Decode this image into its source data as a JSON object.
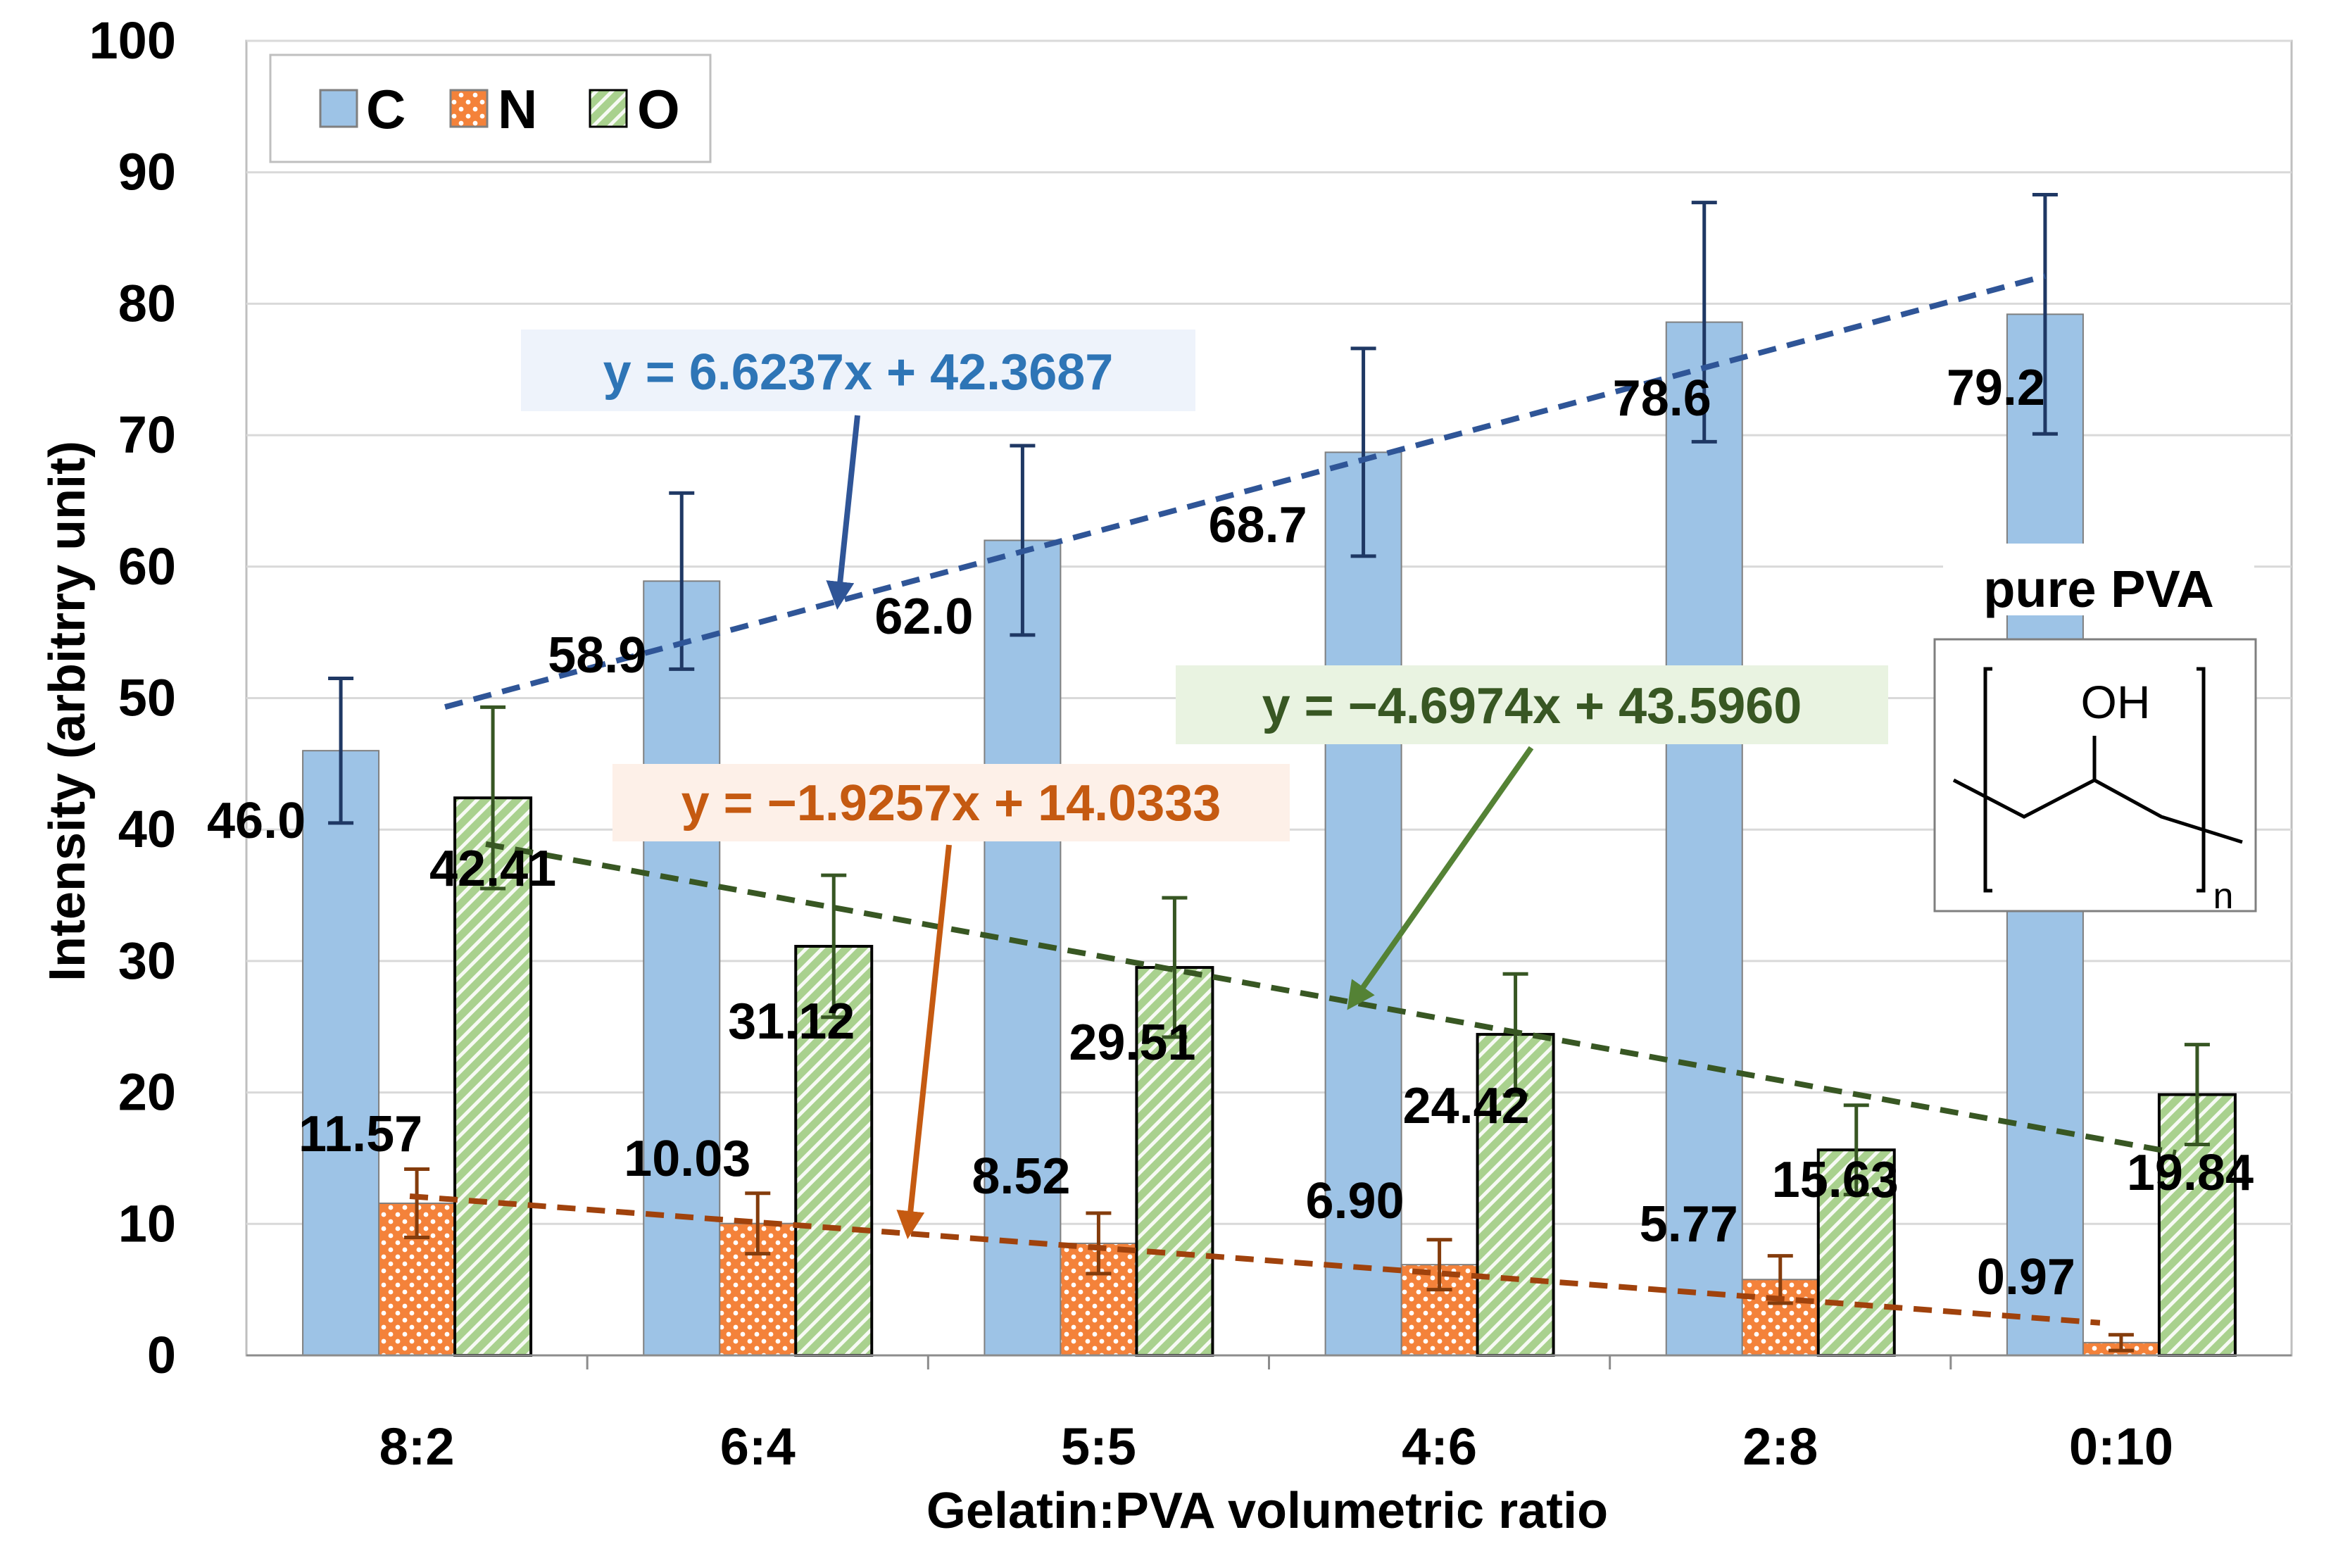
{
  "chart_data": {
    "type": "bar",
    "title": "",
    "xlabel": "Gelatin:PVA volumetric ratio",
    "ylabel": "Intensity (arbitrry unit)",
    "ylim": [
      0,
      100
    ],
    "yticks": [
      "0",
      "10",
      "20",
      "30",
      "40",
      "50",
      "60",
      "70",
      "80",
      "90",
      "100"
    ],
    "categories": [
      "8:2",
      "6:4",
      "5:5",
      "4:6",
      "2:8",
      "0:10"
    ],
    "legend": {
      "placement": "top-left",
      "entries": [
        "C",
        "N",
        "O"
      ]
    },
    "series": [
      {
        "name": "C",
        "color": "#9dc3e6",
        "values": [
          46.0,
          58.9,
          62.0,
          68.7,
          78.6,
          79.2
        ],
        "labels": [
          "46.0",
          "58.9",
          "62.0",
          "68.7",
          "78.6",
          "79.2"
        ],
        "error": [
          5.5,
          6.7,
          7.2,
          7.9,
          9.1,
          9.1
        ]
      },
      {
        "name": "N",
        "color": "#f4823a",
        "values": [
          11.57,
          10.03,
          8.52,
          6.9,
          5.77,
          0.97
        ],
        "labels": [
          "11.57",
          "10.03",
          "8.52",
          "6.90",
          "5.77",
          "0.97"
        ],
        "error": [
          2.6,
          2.3,
          2.3,
          1.9,
          1.8,
          0.6
        ]
      },
      {
        "name": "O",
        "color": "#a9d18e",
        "values": [
          42.41,
          31.12,
          29.51,
          24.42,
          15.63,
          19.84
        ],
        "labels": [
          "42.41",
          "31.12",
          "29.51",
          "24.42",
          "15.63",
          "19.84"
        ],
        "error": [
          6.9,
          5.4,
          5.3,
          4.6,
          3.4,
          3.8
        ]
      }
    ],
    "trendlines": [
      {
        "series": "C",
        "equation": "y = 6.6237x + 42.3687",
        "slope": 6.6237,
        "intercept": 42.3687,
        "color": "#2f5597",
        "label_color": "#2e75b6",
        "label_bg": "#eef3fb"
      },
      {
        "series": "N",
        "equation": "y = −1.9257x + 14.0333",
        "slope": -1.9257,
        "intercept": 14.0333,
        "color": "#a0420c",
        "label_color": "#c55a11",
        "label_bg": "#fdf0e8"
      },
      {
        "series": "O",
        "equation": "y = −4.6974x + 43.5960",
        "slope": -4.6974,
        "intercept": 43.596,
        "color": "#385723",
        "label_color": "#385723",
        "label_bg": "#e9f3e1"
      }
    ],
    "inset": {
      "title": "pure PVA",
      "group": "OH",
      "subscript": "n"
    }
  }
}
